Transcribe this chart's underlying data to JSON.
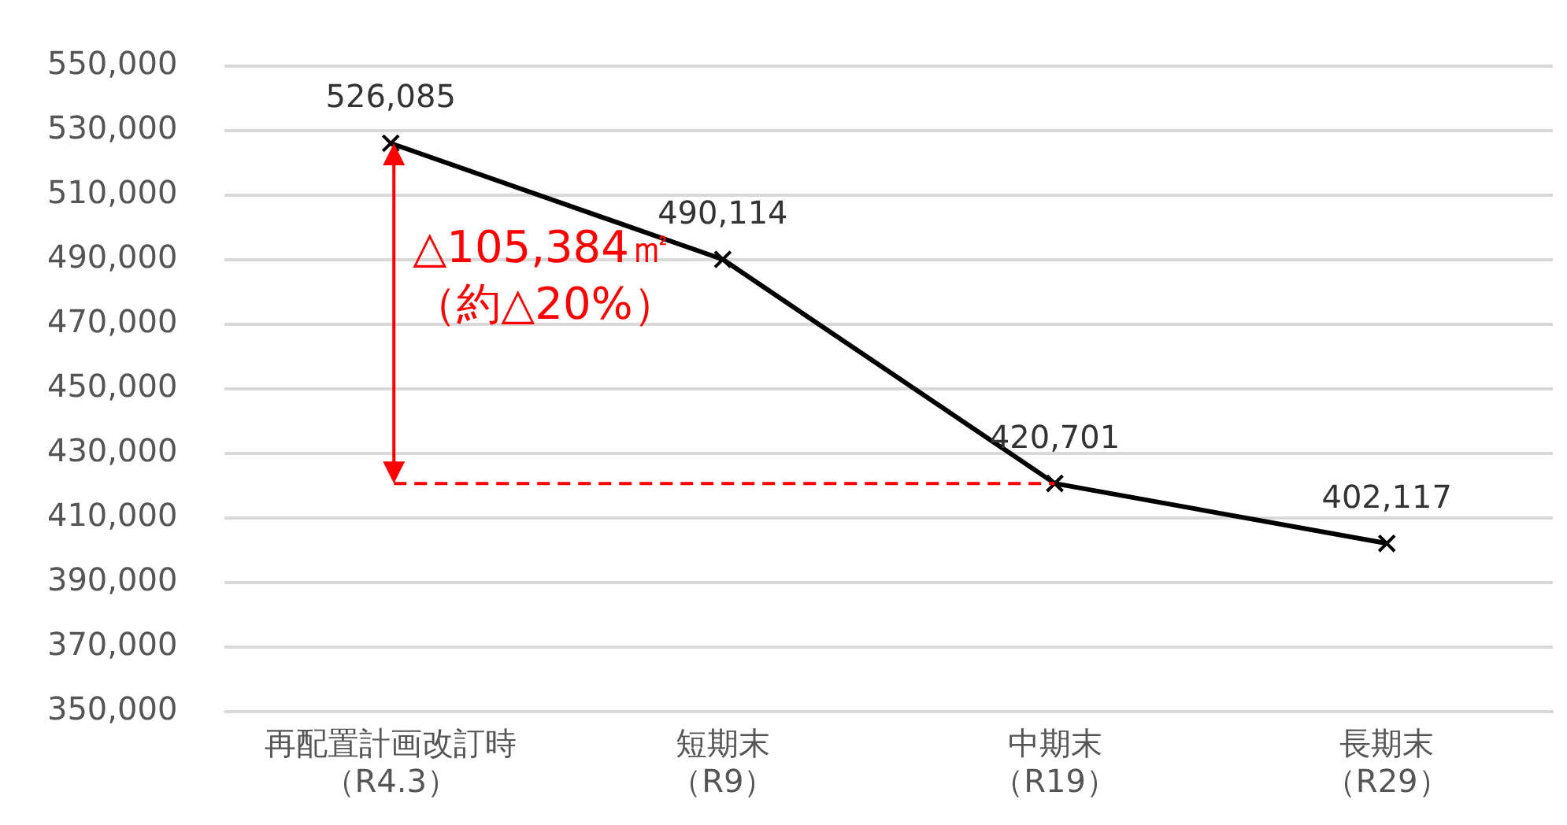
{
  "chart_data": {
    "type": "line",
    "categories": [
      "再配置計画改訂時（R4.3）",
      "短期末（R9）",
      "中期末（R19）",
      "長期末（R29）"
    ],
    "series": [
      {
        "color": "#000000",
        "values": [
          526085,
          490114,
          420701,
          402117
        ],
        "value_labels": [
          "526,085",
          "490,114",
          "420,701",
          "402,117"
        ]
      }
    ],
    "ylim": [
      350000,
      550000
    ],
    "yticks": [
      {
        "value": 350000,
        "label": "350,000"
      },
      {
        "value": 370000,
        "label": "370,000"
      },
      {
        "value": 390000,
        "label": "390,000"
      },
      {
        "value": 410000,
        "label": "410,000"
      },
      {
        "value": 430000,
        "label": "430,000"
      },
      {
        "value": 450000,
        "label": "450,000"
      },
      {
        "value": 470000,
        "label": "470,000"
      },
      {
        "value": 490000,
        "label": "490,000"
      },
      {
        "value": 510000,
        "label": "510,000"
      },
      {
        "value": 530000,
        "label": "530,000"
      },
      {
        "value": 550000,
        "label": "550,000"
      }
    ],
    "annotations": [
      "△105,384㎡（約△20%）"
    ],
    "grid": "y",
    "legend": false,
    "marker": "cross",
    "line_style": "solid"
  }
}
